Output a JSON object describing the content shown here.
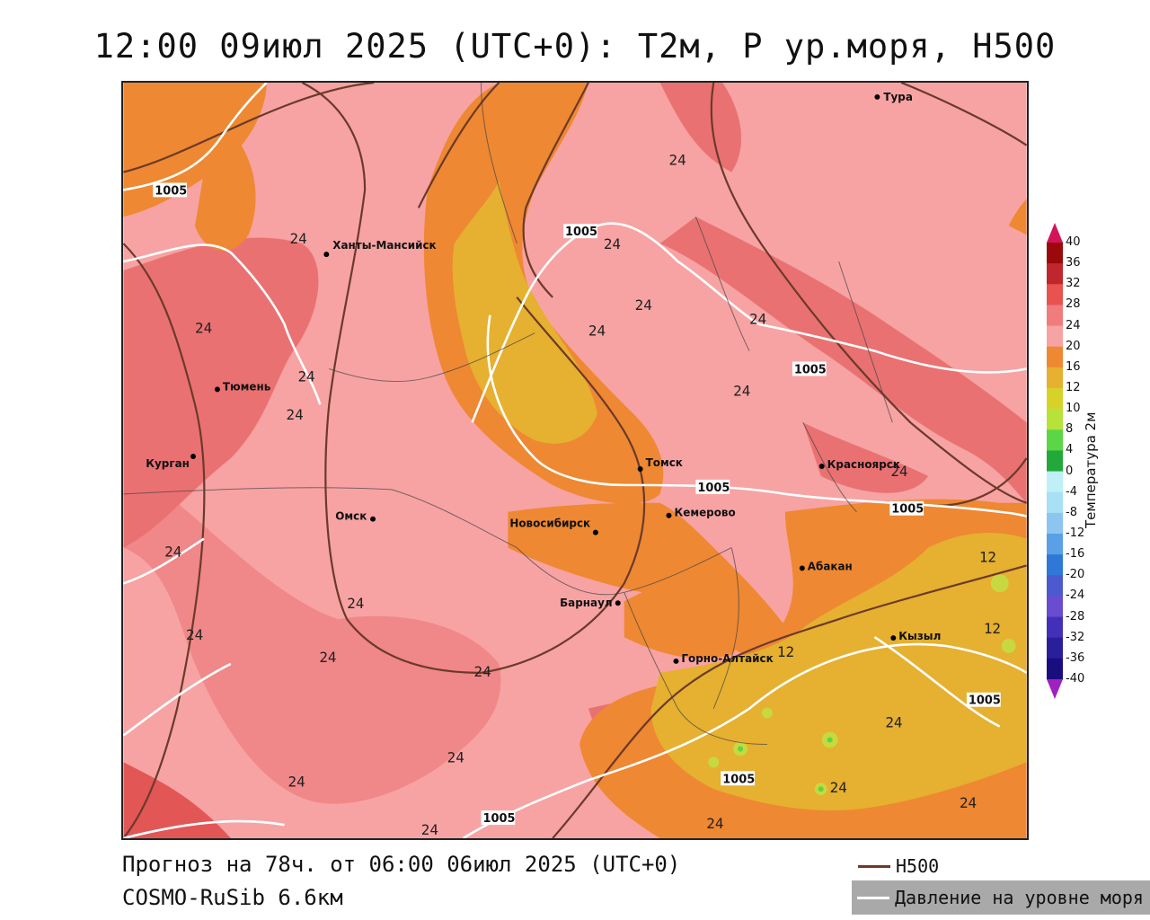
{
  "title": "12:00 09июл 2025 (UTC+0): T2м, P ур.моря, H500",
  "footer": {
    "forecast": "Прогноз на 78ч. от 06:00 06июл 2025 (UTC+0)",
    "model": "COSMO-RuSib 6.6км"
  },
  "legend": {
    "h500_label": "H500",
    "h500_color": "#6b3a2a",
    "pressure_label": "Давление на уровне моря",
    "pressure_color": "#ffffff",
    "pressure_bg": "#a9a9a9"
  },
  "colorbar": {
    "title": "Температура 2м",
    "levels": [
      "40",
      "36",
      "32",
      "28",
      "24",
      "20",
      "16",
      "12",
      "10",
      "8",
      "4",
      "0",
      "-4",
      "-8",
      "-12",
      "-16",
      "-20",
      "-24",
      "-28",
      "-32",
      "-36",
      "-40"
    ],
    "colors": [
      "#d4145a",
      "#9b0a0a",
      "#c0262d",
      "#e8534f",
      "#f07c7c",
      "#f7a3a3",
      "#ee8832",
      "#e6b030",
      "#d7d22a",
      "#b6e23a",
      "#5bd646",
      "#23a83a",
      "#bff0f5",
      "#a8e0f4",
      "#8cc6f0",
      "#5aa0e6",
      "#2f78d8",
      "#4c5ad0",
      "#6a4cd0",
      "#4430b8",
      "#2a1f9a",
      "#1a0d80",
      "#a020c0"
    ]
  },
  "cities": [
    {
      "name": "Тура"
    },
    {
      "name": "Ханты-Мансийск"
    },
    {
      "name": "Тюмень"
    },
    {
      "name": "Курган"
    },
    {
      "name": "Омск"
    },
    {
      "name": "Новосибирск"
    },
    {
      "name": "Томск"
    },
    {
      "name": "Кемерово"
    },
    {
      "name": "Красноярск"
    },
    {
      "name": "Абакан"
    },
    {
      "name": "Барнаул"
    },
    {
      "name": "Горно-Алтайск"
    },
    {
      "name": "Кызыл"
    }
  ],
  "contour_labels": {
    "pressure": "1005",
    "temp24": "24",
    "temp12": "12"
  }
}
